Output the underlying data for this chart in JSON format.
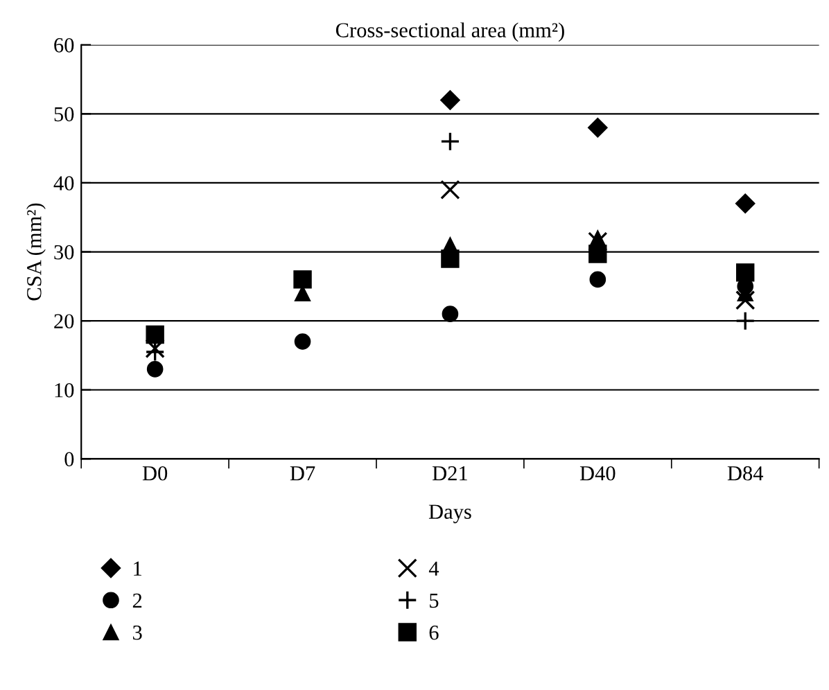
{
  "chart_data": {
    "type": "scatter",
    "title": "Cross-sectional area (mm²)",
    "xlabel": "Days",
    "ylabel": "CSA (mm²)",
    "categories": [
      "D0",
      "D7",
      "D21",
      "D40",
      "D84"
    ],
    "series": [
      {
        "name": "1",
        "color": "#000000",
        "marker": "diamond",
        "values": [
          null,
          null,
          52,
          48,
          37
        ]
      },
      {
        "name": "2",
        "color": "#000000",
        "marker": "circle",
        "values": [
          13,
          17,
          21,
          26,
          25
        ]
      },
      {
        "name": "3",
        "color": "#000000",
        "marker": "triangle",
        "values": [
          null,
          24,
          31,
          32,
          24
        ]
      },
      {
        "name": "4",
        "color": "#000000",
        "marker": "cross",
        "values": [
          16,
          null,
          39,
          31.5,
          23
        ]
      },
      {
        "name": "5",
        "color": "#000000",
        "marker": "plus",
        "values": [
          15.5,
          null,
          46,
          null,
          20
        ]
      },
      {
        "name": "6",
        "color": "#000000",
        "marker": "square",
        "values": [
          18,
          26,
          29,
          29.7,
          27
        ]
      }
    ],
    "ylim": [
      0,
      60
    ],
    "yticks": [
      0,
      10,
      20,
      30,
      40,
      50,
      60
    ],
    "grid": "y",
    "legend": "bottom"
  }
}
